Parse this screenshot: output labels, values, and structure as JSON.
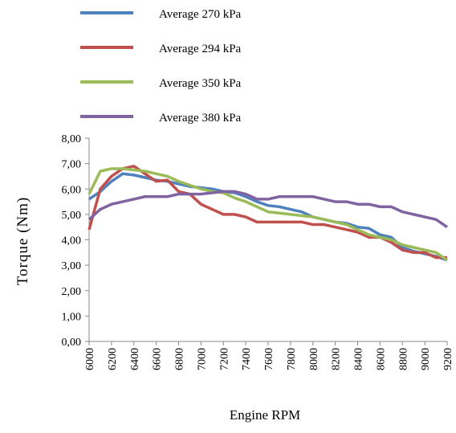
{
  "chart_data": {
    "type": "line",
    "xlabel": "Engine RPM",
    "ylabel": "Torque (Nm)",
    "x": [
      6000,
      6100,
      6200,
      6300,
      6400,
      6500,
      6600,
      6700,
      6800,
      6900,
      7000,
      7100,
      7200,
      7300,
      7400,
      7500,
      7600,
      7700,
      7800,
      7900,
      8000,
      8100,
      8200,
      8300,
      8400,
      8500,
      8600,
      8700,
      8800,
      8900,
      9000,
      9100,
      9200
    ],
    "xlim": [
      6000,
      9200
    ],
    "xticks": [
      6000,
      6200,
      6400,
      6600,
      6800,
      7000,
      7200,
      7400,
      7600,
      7800,
      8000,
      8200,
      8400,
      8600,
      8800,
      9000,
      9200
    ],
    "ylim": [
      0,
      8
    ],
    "yticks": [
      {
        "value": 0,
        "label": "0,00"
      },
      {
        "value": 1,
        "label": "1,00"
      },
      {
        "value": 2,
        "label": "2,00"
      },
      {
        "value": 3,
        "label": "3,00"
      },
      {
        "value": 4,
        "label": "4,00"
      },
      {
        "value": 5,
        "label": "5,00"
      },
      {
        "value": 6,
        "label": "6,00"
      },
      {
        "value": 7,
        "label": "7,00"
      },
      {
        "value": 8,
        "label": "8,00"
      }
    ],
    "series": [
      {
        "name": "Average 270 kPa",
        "color": "#4f81bd",
        "values": [
          5.6,
          5.9,
          6.3,
          6.6,
          6.55,
          6.45,
          6.35,
          6.3,
          6.2,
          6.1,
          6.05,
          6.0,
          5.9,
          5.85,
          5.7,
          5.5,
          5.35,
          5.3,
          5.2,
          5.1,
          4.9,
          4.8,
          4.7,
          4.65,
          4.5,
          4.45,
          4.2,
          4.1,
          3.7,
          3.55,
          3.45,
          3.35,
          3.2
        ]
      },
      {
        "name": "Average 294 kPa",
        "color": "#c0504d",
        "values": [
          4.4,
          6.0,
          6.5,
          6.8,
          6.9,
          6.6,
          6.3,
          6.35,
          5.9,
          5.8,
          5.4,
          5.2,
          5.0,
          5.0,
          4.9,
          4.7,
          4.7,
          4.7,
          4.7,
          4.7,
          4.6,
          4.6,
          4.5,
          4.4,
          4.3,
          4.1,
          4.1,
          3.9,
          3.6,
          3.5,
          3.5,
          3.3,
          3.3
        ]
      },
      {
        "name": "Average 350 kPa",
        "color": "#9bbb59",
        "values": [
          5.8,
          6.7,
          6.8,
          6.8,
          6.75,
          6.7,
          6.6,
          6.5,
          6.3,
          6.15,
          6.0,
          5.9,
          5.85,
          5.65,
          5.5,
          5.3,
          5.1,
          5.05,
          5.0,
          4.95,
          4.9,
          4.8,
          4.7,
          4.6,
          4.4,
          4.2,
          4.1,
          4.0,
          3.8,
          3.7,
          3.6,
          3.5,
          3.2
        ]
      },
      {
        "name": "Average 380 kPa",
        "color": "#8064a2",
        "values": [
          4.8,
          5.2,
          5.4,
          5.5,
          5.6,
          5.7,
          5.7,
          5.7,
          5.8,
          5.8,
          5.8,
          5.85,
          5.9,
          5.9,
          5.8,
          5.6,
          5.6,
          5.7,
          5.7,
          5.7,
          5.7,
          5.6,
          5.5,
          5.5,
          5.4,
          5.4,
          5.3,
          5.3,
          5.1,
          5.0,
          4.9,
          4.8,
          4.5
        ]
      }
    ]
  }
}
